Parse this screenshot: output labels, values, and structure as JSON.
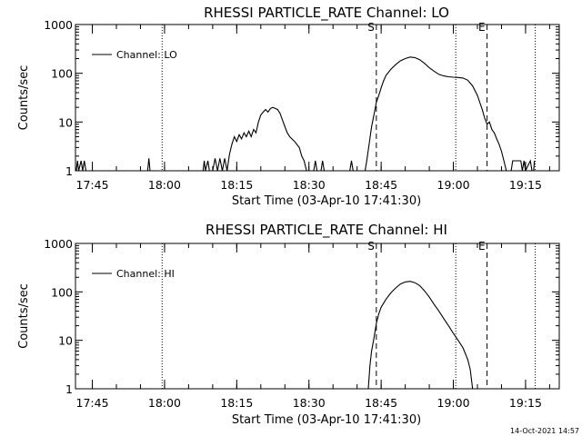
{
  "chart_data": [
    {
      "type": "line",
      "title": "RHESSI PARTICLE_RATE Channel: LO",
      "xlabel": "Start Time (03-Apr-10 17:41:30)",
      "ylabel": "Counts/sec",
      "yscale": "log",
      "xlim": [
        "17:41:30",
        "19:22:00"
      ],
      "ylim": [
        1,
        1000
      ],
      "x_tick_labels": [
        "17:45",
        "18:00",
        "18:15",
        "18:30",
        "18:45",
        "19:00",
        "19:15"
      ],
      "y_tick_labels": [
        "1",
        "10",
        "100",
        "1000"
      ],
      "legend": {
        "label": "Channel: LO",
        "position": "top-left"
      },
      "markers": [
        {
          "label": "S",
          "time": "18:44:00",
          "style": "dashed"
        },
        {
          "label": "E",
          "time": "19:07:00",
          "style": "dashed"
        }
      ],
      "dotted_lines": [
        "17:59:30",
        "19:00:30",
        "19:17:00"
      ],
      "series": [
        {
          "name": "Channel: LO",
          "points": [
            [
              "17:41:40",
              1
            ],
            [
              "17:41:55",
              1.6
            ],
            [
              "17:42:10",
              1
            ],
            [
              "17:42:40",
              1.6
            ],
            [
              "17:43:00",
              1
            ],
            [
              "17:43:20",
              1.6
            ],
            [
              "17:43:40",
              1
            ],
            [
              "17:56:30",
              1
            ],
            [
              "17:56:45",
              1.8
            ],
            [
              "17:57:00",
              1
            ],
            [
              "18:08:00",
              1
            ],
            [
              "18:08:15",
              1.6
            ],
            [
              "18:08:30",
              1
            ],
            [
              "18:09:00",
              1.6
            ],
            [
              "18:09:20",
              1
            ],
            [
              "18:10:00",
              1
            ],
            [
              "18:10:30",
              1.8
            ],
            [
              "18:11:00",
              1
            ],
            [
              "18:11:30",
              1.8
            ],
            [
              "18:12:00",
              1
            ],
            [
              "18:12:30",
              1.8
            ],
            [
              "18:13:00",
              1
            ],
            [
              "18:13:30",
              2.2
            ],
            [
              "18:14:00",
              3.5
            ],
            [
              "18:14:30",
              5
            ],
            [
              "18:15:00",
              4
            ],
            [
              "18:15:30",
              5.5
            ],
            [
              "18:16:00",
              4.5
            ],
            [
              "18:16:30",
              6
            ],
            [
              "18:17:00",
              5
            ],
            [
              "18:17:30",
              6.5
            ],
            [
              "18:18:00",
              5
            ],
            [
              "18:18:30",
              7
            ],
            [
              "18:19:00",
              6
            ],
            [
              "18:19:30",
              10
            ],
            [
              "18:20:00",
              14
            ],
            [
              "18:20:30",
              16
            ],
            [
              "18:21:00",
              18
            ],
            [
              "18:21:30",
              16
            ],
            [
              "18:22:00",
              19
            ],
            [
              "18:22:30",
              20
            ],
            [
              "18:23:00",
              19
            ],
            [
              "18:23:30",
              18
            ],
            [
              "18:24:00",
              15
            ],
            [
              "18:24:30",
              11
            ],
            [
              "18:25:00",
              8
            ],
            [
              "18:25:30",
              6
            ],
            [
              "18:26:00",
              5
            ],
            [
              "18:27:00",
              4
            ],
            [
              "18:28:00",
              3
            ],
            [
              "18:28:30",
              2
            ],
            [
              "18:29:00",
              1.6
            ],
            [
              "18:29:30",
              1
            ],
            [
              "18:31:00",
              1
            ],
            [
              "18:31:20",
              1.6
            ],
            [
              "18:31:40",
              1
            ],
            [
              "18:32:30",
              1
            ],
            [
              "18:32:50",
              1.6
            ],
            [
              "18:33:10",
              1
            ],
            [
              "18:38:30",
              1
            ],
            [
              "18:38:50",
              1.6
            ],
            [
              "18:39:10",
              1
            ],
            [
              "18:41:40",
              1
            ],
            [
              "18:42:00",
              1.6
            ],
            [
              "18:42:30",
              3.5
            ],
            [
              "18:43:00",
              8
            ],
            [
              "18:43:30",
              14
            ],
            [
              "18:44:00",
              25
            ],
            [
              "18:44:30",
              35
            ],
            [
              "18:45:00",
              50
            ],
            [
              "18:45:30",
              70
            ],
            [
              "18:46:00",
              90
            ],
            [
              "18:47:00",
              120
            ],
            [
              "18:48:00",
              150
            ],
            [
              "18:49:00",
              180
            ],
            [
              "18:50:00",
              200
            ],
            [
              "18:51:00",
              215
            ],
            [
              "18:52:00",
              210
            ],
            [
              "18:53:00",
              190
            ],
            [
              "18:54:00",
              160
            ],
            [
              "18:55:00",
              130
            ],
            [
              "18:56:00",
              110
            ],
            [
              "18:57:00",
              95
            ],
            [
              "18:58:00",
              88
            ],
            [
              "18:59:00",
              85
            ],
            [
              "19:00:00",
              83
            ],
            [
              "19:01:00",
              82
            ],
            [
              "19:02:00",
              80
            ],
            [
              "19:03:00",
              72
            ],
            [
              "19:04:00",
              55
            ],
            [
              "19:05:00",
              35
            ],
            [
              "19:05:30",
              25
            ],
            [
              "19:06:00",
              18
            ],
            [
              "19:06:30",
              12
            ],
            [
              "19:07:00",
              9
            ],
            [
              "19:07:30",
              10
            ],
            [
              "19:08:00",
              7
            ],
            [
              "19:08:30",
              6
            ],
            [
              "19:09:00",
              4.5
            ],
            [
              "19:09:30",
              3.5
            ],
            [
              "19:10:00",
              2.5
            ],
            [
              "19:10:30",
              1.6
            ],
            [
              "19:11:00",
              1
            ],
            [
              "19:12:00",
              1
            ],
            [
              "19:12:20",
              1.6
            ],
            [
              "19:14:00",
              1.6
            ],
            [
              "19:14:20",
              1
            ],
            [
              "19:14:40",
              1.6
            ],
            [
              "19:15:00",
              1
            ],
            [
              "19:16:00",
              1.6
            ],
            [
              "19:16:20",
              1
            ],
            [
              "19:16:40",
              1
            ],
            [
              "19:16:50",
              1.6
            ]
          ]
        }
      ]
    },
    {
      "type": "line",
      "title": "RHESSI PARTICLE_RATE Channel: HI",
      "xlabel": "Start Time (03-Apr-10 17:41:30)",
      "ylabel": "Counts/sec",
      "yscale": "log",
      "xlim": [
        "17:41:30",
        "19:22:00"
      ],
      "ylim": [
        1,
        1000
      ],
      "x_tick_labels": [
        "17:45",
        "18:00",
        "18:15",
        "18:30",
        "18:45",
        "19:00",
        "19:15"
      ],
      "y_tick_labels": [
        "1",
        "10",
        "100",
        "1000"
      ],
      "legend": {
        "label": "Channel: HI",
        "position": "top-left"
      },
      "markers": [
        {
          "label": "S",
          "time": "18:44:00",
          "style": "dashed"
        },
        {
          "label": "E",
          "time": "19:07:00",
          "style": "dashed"
        }
      ],
      "dotted_lines": [
        "17:59:30",
        "19:00:30",
        "19:17:00"
      ],
      "series": [
        {
          "name": "Channel: HI",
          "points": [
            [
              "18:42:20",
              1
            ],
            [
              "18:42:40",
              3
            ],
            [
              "18:43:00",
              6
            ],
            [
              "18:43:30",
              11
            ],
            [
              "18:44:00",
              22
            ],
            [
              "18:44:30",
              35
            ],
            [
              "18:45:00",
              48
            ],
            [
              "18:46:00",
              70
            ],
            [
              "18:47:00",
              95
            ],
            [
              "18:48:00",
              120
            ],
            [
              "18:49:00",
              145
            ],
            [
              "18:50:00",
              160
            ],
            [
              "18:51:00",
              165
            ],
            [
              "18:52:00",
              155
            ],
            [
              "18:53:00",
              135
            ],
            [
              "18:54:00",
              105
            ],
            [
              "18:55:00",
              78
            ],
            [
              "18:56:00",
              55
            ],
            [
              "18:57:00",
              40
            ],
            [
              "18:58:00",
              28
            ],
            [
              "18:59:00",
              20
            ],
            [
              "19:00:00",
              14
            ],
            [
              "19:01:00",
              10
            ],
            [
              "19:02:00",
              7
            ],
            [
              "19:03:00",
              4
            ],
            [
              "19:03:30",
              2.5
            ],
            [
              "19:04:00",
              1
            ]
          ]
        }
      ]
    }
  ],
  "footer": {
    "timestamp": "14-Oct-2021 14:57"
  }
}
